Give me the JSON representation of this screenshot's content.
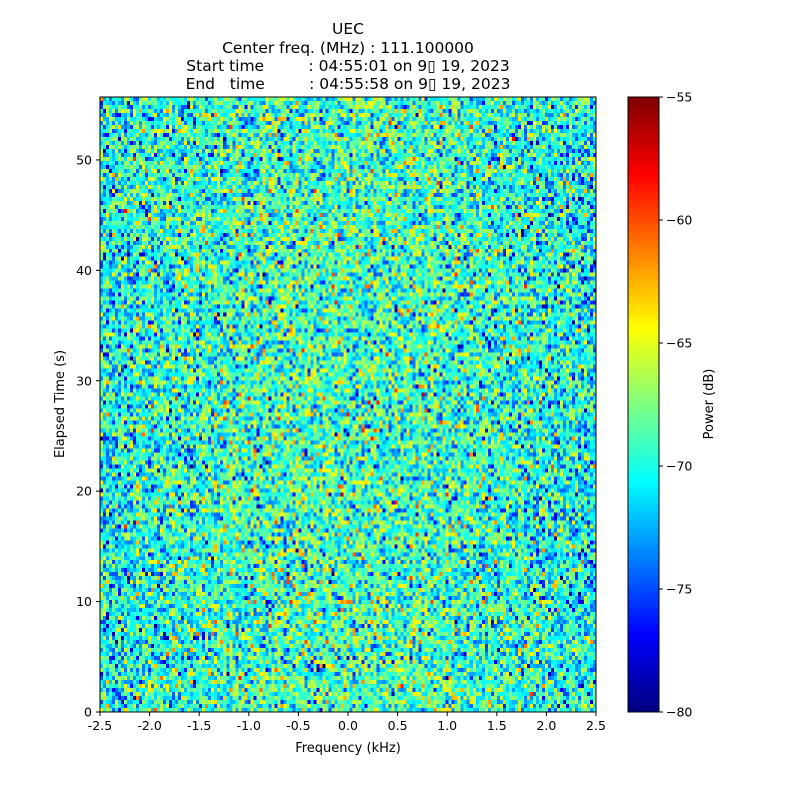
{
  "title": {
    "line1": "UEC",
    "line2": "Center freq. (MHz) : 111.100000",
    "line3": "Start time         : 04:55:01 on 9▯ 19, 2023",
    "line4": "End   time         : 04:55:58 on 9▯ 19, 2023"
  },
  "chart_data": {
    "type": "heatmap",
    "xlabel": "Frequency (kHz)",
    "ylabel": "Elapsed Time (s)",
    "xlim": [
      -2.5,
      2.5
    ],
    "ylim": [
      0,
      55.7
    ],
    "xticks": [
      -2.5,
      -2.0,
      -1.5,
      -1.0,
      -0.5,
      0.0,
      0.5,
      1.0,
      1.5,
      2.0,
      2.5
    ],
    "xtick_labels": [
      "-2.5",
      "-2.0",
      "-1.5",
      "-1.0",
      "-0.5",
      "0.0",
      "0.5",
      "1.0",
      "1.5",
      "2.0",
      "2.5"
    ],
    "yticks": [
      0,
      10,
      20,
      30,
      40,
      50
    ],
    "ytick_labels": [
      "0",
      "10",
      "20",
      "30",
      "40",
      "50"
    ],
    "colormap": "jet",
    "colorbar": {
      "label": "Power (dB)",
      "range": [
        -80,
        -55
      ],
      "ticks": [
        -80,
        -75,
        -70,
        -65,
        -60,
        -55
      ],
      "tick_labels": [
        "−80",
        "−75",
        "−70",
        "−65",
        "−60",
        "−55"
      ]
    },
    "noise_model": {
      "mean_db": -70.5,
      "center_mean_db": -69,
      "std_db": 3.3
    },
    "grid": false
  }
}
